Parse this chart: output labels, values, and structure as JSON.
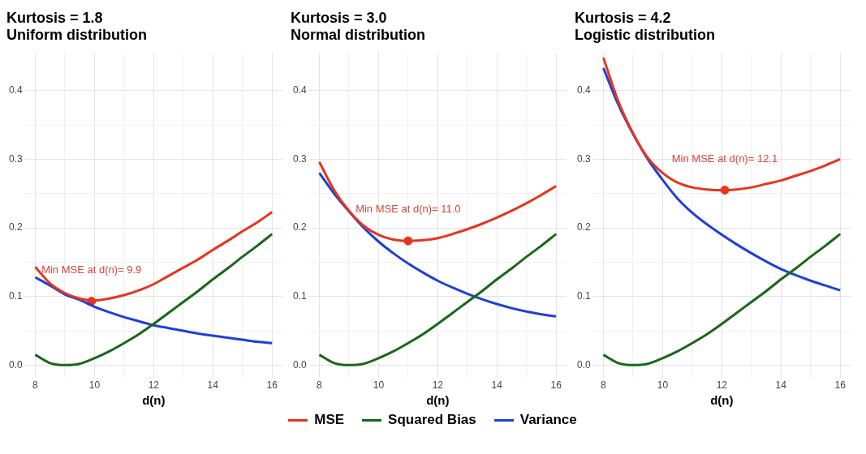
{
  "chart_data": [
    {
      "type": "line",
      "title": "Kurtosis = 1.8",
      "subtitle": "Uniform distribution",
      "xlabel": "d(n)",
      "x": [
        8,
        8.5,
        9,
        9.5,
        10,
        10.5,
        11,
        11.5,
        12,
        12.5,
        13,
        13.5,
        14,
        14.5,
        15,
        15.5,
        16
      ],
      "xlim": [
        7.65,
        16.35
      ],
      "xticks": [
        8,
        {
          "value": 9,
          "label": null
        },
        10,
        {
          "value": 11,
          "label": null
        },
        12,
        {
          "value": 13,
          "label": null
        },
        14,
        {
          "value": 15,
          "label": null
        },
        16
      ],
      "ylim": [
        -0.018,
        0.455
      ],
      "yticks": [
        {
          "value": 0,
          "label": "0.0"
        },
        {
          "value": 0.05,
          "label": null
        },
        0.1,
        {
          "value": 0.15,
          "label": null
        },
        0.2,
        {
          "value": 0.25,
          "label": null
        },
        0.3,
        {
          "value": 0.35,
          "label": null
        },
        0.4
      ],
      "grid": true,
      "legend": "bottom",
      "tick_labels": "xy",
      "series": [
        {
          "name": "MSE",
          "color": "#e8341c",
          "values": [
            0.143,
            0.119,
            0.105,
            0.097,
            0.094,
            0.097,
            0.102,
            0.109,
            0.118,
            0.13,
            0.142,
            0.154,
            0.168,
            0.181,
            0.195,
            0.208,
            0.223
          ]
        },
        {
          "name": "Squared Bias",
          "color": "#1a661a",
          "values": [
            0.015,
            0.003,
            0.0,
            0.002,
            0.01,
            0.02,
            0.032,
            0.045,
            0.06,
            0.076,
            0.092,
            0.108,
            0.125,
            0.141,
            0.158,
            0.174,
            0.191
          ]
        },
        {
          "name": "Variance",
          "color": "#1f3fd8",
          "values": [
            0.128,
            0.116,
            0.103,
            0.095,
            0.085,
            0.077,
            0.07,
            0.064,
            0.058,
            0.054,
            0.05,
            0.046,
            0.043,
            0.04,
            0.037,
            0.034,
            0.032
          ]
        },
        {
          "type": "scatter",
          "color": "#e8341c",
          "x": [
            9.9
          ],
          "values": [
            0.093
          ]
        }
      ],
      "annotations": [
        {
          "text": "Min MSE at d(n)= 9.9",
          "x": 9.9,
          "y": 0.093
        }
      ]
    },
    {
      "type": "line",
      "title": "Kurtosis = 3.0",
      "subtitle": "Normal distribution",
      "xlabel": "d(n)",
      "x": [
        8,
        8.5,
        9,
        9.5,
        10,
        10.5,
        11,
        11.5,
        12,
        12.5,
        13,
        13.5,
        14,
        14.5,
        15,
        15.5,
        16
      ],
      "xlim": [
        7.65,
        16.35
      ],
      "xticks": [
        8,
        {
          "value": 9,
          "label": null
        },
        10,
        {
          "value": 11,
          "label": null
        },
        12,
        {
          "value": 13,
          "label": null
        },
        14,
        {
          "value": 15,
          "label": null
        },
        16
      ],
      "ylim": [
        -0.018,
        0.455
      ],
      "yticks": [
        {
          "value": 0,
          "label": "0.0"
        },
        {
          "value": 0.05,
          "label": null
        },
        0.1,
        {
          "value": 0.15,
          "label": null
        },
        0.2,
        {
          "value": 0.25,
          "label": null
        },
        0.3,
        {
          "value": 0.35,
          "label": null
        },
        0.4
      ],
      "grid": true,
      "legend": "bottom",
      "series": [
        {
          "color": "#e8341c",
          "values": [
            0.296,
            0.255,
            0.225,
            0.203,
            0.19,
            0.183,
            0.181,
            0.182,
            0.185,
            0.191,
            0.198,
            0.206,
            0.215,
            0.225,
            0.236,
            0.248,
            0.261
          ]
        },
        {
          "color": "#1a661a",
          "values": [
            0.015,
            0.003,
            0.0,
            0.002,
            0.01,
            0.02,
            0.032,
            0.045,
            0.06,
            0.076,
            0.092,
            0.108,
            0.125,
            0.141,
            0.158,
            0.174,
            0.191
          ]
        },
        {
          "color": "#1f3fd8",
          "values": [
            0.28,
            0.25,
            0.224,
            0.2,
            0.18,
            0.163,
            0.148,
            0.135,
            0.123,
            0.113,
            0.104,
            0.096,
            0.089,
            0.083,
            0.078,
            0.074,
            0.071
          ]
        },
        {
          "type": "scatter",
          "color": "#e8341c",
          "x": [
            11.0
          ],
          "values": [
            0.181
          ]
        }
      ],
      "annotations": [
        {
          "text": "Min MSE at d(n)= 11.0",
          "x": 11.0,
          "y": 0.181
        }
      ]
    },
    {
      "type": "line",
      "title": "Kurtosis = 4.2",
      "subtitle": "Logistic distribution",
      "xlabel": "d(n)",
      "x": [
        8,
        8.5,
        9,
        9.5,
        10,
        10.5,
        11,
        11.5,
        12,
        12.5,
        13,
        13.5,
        14,
        14.5,
        15,
        15.5,
        16
      ],
      "xlim": [
        7.65,
        16.35
      ],
      "xticks": [
        8,
        {
          "value": 9,
          "label": null
        },
        10,
        {
          "value": 11,
          "label": null
        },
        12,
        {
          "value": 13,
          "label": null
        },
        14,
        {
          "value": 15,
          "label": null
        },
        16
      ],
      "ylim": [
        -0.018,
        0.455
      ],
      "yticks": [
        {
          "value": 0,
          "label": "0.0"
        },
        {
          "value": 0.05,
          "label": null
        },
        0.1,
        {
          "value": 0.15,
          "label": null
        },
        0.2,
        {
          "value": 0.25,
          "label": null
        },
        0.3,
        {
          "value": 0.35,
          "label": null
        },
        0.4
      ],
      "grid": true,
      "legend": "bottom",
      "series": [
        {
          "color": "#e8341c",
          "values": [
            0.448,
            0.385,
            0.338,
            0.302,
            0.28,
            0.266,
            0.259,
            0.256,
            0.255,
            0.256,
            0.259,
            0.264,
            0.269,
            0.276,
            0.283,
            0.291,
            0.3
          ]
        },
        {
          "color": "#1a661a",
          "values": [
            0.015,
            0.003,
            0.0,
            0.002,
            0.01,
            0.02,
            0.032,
            0.045,
            0.06,
            0.076,
            0.092,
            0.108,
            0.125,
            0.141,
            0.158,
            0.174,
            0.191
          ]
        },
        {
          "color": "#1f3fd8",
          "values": [
            0.433,
            0.38,
            0.337,
            0.3,
            0.27,
            0.243,
            0.222,
            0.205,
            0.19,
            0.176,
            0.163,
            0.151,
            0.14,
            0.131,
            0.123,
            0.116,
            0.109
          ]
        },
        {
          "type": "scatter",
          "color": "#e8341c",
          "x": [
            12.1
          ],
          "values": [
            0.255
          ]
        }
      ],
      "annotations": [
        {
          "text": "Min MSE at d(n)= 12.1",
          "x": 12.1,
          "y": 0.255
        }
      ]
    }
  ]
}
